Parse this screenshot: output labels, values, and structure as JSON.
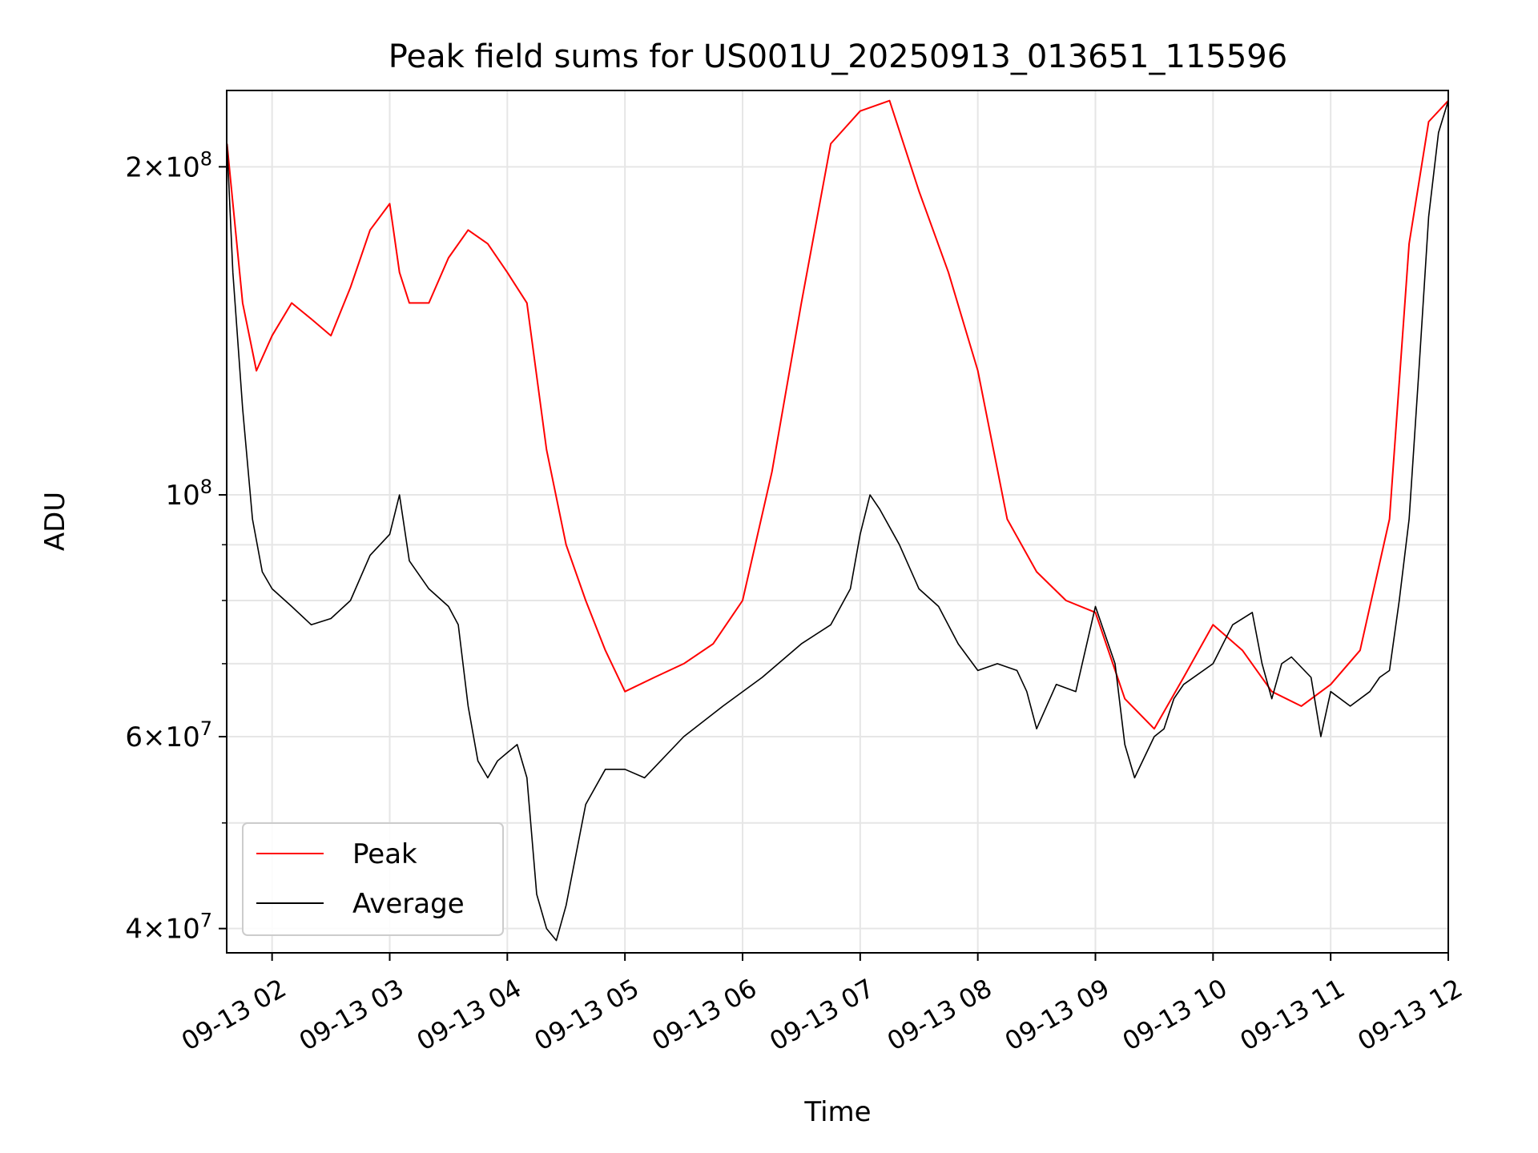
{
  "chart_data": {
    "type": "line",
    "title": "Peak field sums for US001U_20250913_013651_115596",
    "xlabel": "Time",
    "ylabel": "ADU",
    "yscale": "log",
    "grid": true,
    "legend_position": "lower-left",
    "x_tick_labels": [
      "09-13 02",
      "09-13 03",
      "09-13 04",
      "09-13 05",
      "09-13 06",
      "09-13 07",
      "09-13 08",
      "09-13 09",
      "09-13 10",
      "09-13 11",
      "09-13 12"
    ],
    "y_ticks": [
      {
        "value": 40000000,
        "base": "4×10",
        "exp": "7"
      },
      {
        "value": 60000000,
        "base": "6×10",
        "exp": "7"
      },
      {
        "value": 100000000,
        "base": "10",
        "exp": "8"
      },
      {
        "value": 200000000,
        "base": "2×10",
        "exp": "8"
      }
    ],
    "xlim": [
      "2025-09-13 01:36:51",
      "2025-09-13 12:00:00"
    ],
    "ylim": [
      38000000,
      235000000
    ],
    "series": [
      {
        "name": "Peak",
        "color": "#ff0000",
        "times": [
          "01:37",
          "01:45",
          "01:52",
          "02:00",
          "02:10",
          "02:20",
          "02:30",
          "02:40",
          "02:50",
          "03:00",
          "03:05",
          "03:10",
          "03:20",
          "03:30",
          "03:40",
          "03:50",
          "04:00",
          "04:10",
          "04:20",
          "04:30",
          "04:40",
          "04:50",
          "05:00",
          "05:15",
          "05:30",
          "05:45",
          "06:00",
          "06:15",
          "06:30",
          "06:45",
          "07:00",
          "07:15",
          "07:30",
          "07:45",
          "08:00",
          "08:15",
          "08:30",
          "08:45",
          "09:00",
          "09:15",
          "09:30",
          "09:45",
          "10:00",
          "10:15",
          "10:30",
          "10:45",
          "11:00",
          "11:15",
          "11:30",
          "11:40",
          "11:50",
          "12:00"
        ],
        "values": [
          210000000,
          150000000,
          130000000,
          140000000,
          150000000,
          145000000,
          140000000,
          155000000,
          175000000,
          185000000,
          160000000,
          150000000,
          150000000,
          165000000,
          175000000,
          170000000,
          160000000,
          150000000,
          110000000,
          90000000,
          80000000,
          72000000,
          66000000,
          68000000,
          70000000,
          73000000,
          80000000,
          105000000,
          150000000,
          210000000,
          225000000,
          230000000,
          190000000,
          160000000,
          130000000,
          95000000,
          85000000,
          80000000,
          78000000,
          65000000,
          61000000,
          68000000,
          76000000,
          72000000,
          66000000,
          64000000,
          67000000,
          72000000,
          95000000,
          170000000,
          220000000,
          230000000
        ]
      },
      {
        "name": "Average",
        "color": "#000000",
        "times": [
          "01:37",
          "01:40",
          "01:45",
          "01:50",
          "01:55",
          "02:00",
          "02:10",
          "02:20",
          "02:30",
          "02:40",
          "02:50",
          "03:00",
          "03:05",
          "03:10",
          "03:20",
          "03:30",
          "03:35",
          "03:40",
          "03:45",
          "03:50",
          "03:55",
          "04:00",
          "04:05",
          "04:10",
          "04:15",
          "04:20",
          "04:25",
          "04:30",
          "04:40",
          "04:50",
          "05:00",
          "05:10",
          "05:30",
          "05:50",
          "06:10",
          "06:30",
          "06:45",
          "06:55",
          "07:00",
          "07:05",
          "07:10",
          "07:20",
          "07:30",
          "07:40",
          "07:50",
          "08:00",
          "08:10",
          "08:20",
          "08:25",
          "08:30",
          "08:40",
          "08:50",
          "09:00",
          "09:10",
          "09:15",
          "09:20",
          "09:30",
          "09:35",
          "09:40",
          "09:45",
          "10:00",
          "10:10",
          "10:20",
          "10:25",
          "10:30",
          "10:35",
          "10:40",
          "10:50",
          "10:55",
          "11:00",
          "11:10",
          "11:20",
          "11:25",
          "11:30",
          "11:35",
          "11:40",
          "11:45",
          "11:50",
          "11:55",
          "12:00"
        ],
        "values": [
          210000000,
          160000000,
          120000000,
          95000000,
          85000000,
          82000000,
          79000000,
          76000000,
          77000000,
          80000000,
          88000000,
          92000000,
          100000000,
          87000000,
          82000000,
          79000000,
          76000000,
          64000000,
          57000000,
          55000000,
          57000000,
          58000000,
          59000000,
          55000000,
          43000000,
          40000000,
          39000000,
          42000000,
          52000000,
          56000000,
          56000000,
          55000000,
          60000000,
          64000000,
          68000000,
          73000000,
          76000000,
          82000000,
          92000000,
          100000000,
          97000000,
          90000000,
          82000000,
          79000000,
          73000000,
          69000000,
          70000000,
          69000000,
          66000000,
          61000000,
          67000000,
          66000000,
          79000000,
          70000000,
          59000000,
          55000000,
          60000000,
          61000000,
          65000000,
          67000000,
          70000000,
          76000000,
          78000000,
          70000000,
          65000000,
          70000000,
          71000000,
          68000000,
          60000000,
          66000000,
          64000000,
          66000000,
          68000000,
          69000000,
          80000000,
          95000000,
          130000000,
          180000000,
          215000000,
          230000000
        ]
      }
    ]
  }
}
